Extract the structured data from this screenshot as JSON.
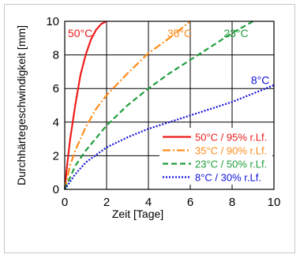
{
  "chart_data": {
    "type": "line",
    "xlabel": "Zeit [Tage]",
    "ylabel": "Durchhärtegeschwindigkeit [mm]",
    "xlim": [
      0,
      10
    ],
    "ylim": [
      0,
      10
    ],
    "xticks": [
      0,
      2,
      4,
      6,
      8,
      10
    ],
    "yticks": [
      0,
      2,
      4,
      6,
      8,
      10
    ],
    "grid": true,
    "legend_position": "bottom-right",
    "series": [
      {
        "name": "50°C / 95% r.Lf.",
        "label": "50°C",
        "color": "#ee1c1c",
        "dash": "solid",
        "x": [
          0,
          0.1,
          0.25,
          0.5,
          0.75,
          1.0,
          1.25,
          1.5,
          1.75,
          2.0
        ],
        "y": [
          0,
          1.3,
          2.9,
          5.0,
          6.8,
          8.0,
          8.9,
          9.5,
          9.85,
          10.0
        ]
      },
      {
        "name": "35°C / 90% r.Lf.",
        "label": "35°C",
        "color": "#ff8c1a",
        "dash": "dashdot",
        "x": [
          0,
          0.25,
          0.5,
          1.0,
          1.5,
          2.0,
          3.0,
          4.0,
          5.0,
          5.5,
          6.0
        ],
        "y": [
          0,
          1.4,
          2.3,
          3.7,
          4.8,
          5.6,
          6.9,
          8.1,
          9.0,
          9.5,
          10.0
        ]
      },
      {
        "name": "23°C / 50% r.Lf.",
        "label": "23°C",
        "color": "#1f9e3a",
        "dash": "dashed",
        "x": [
          0,
          0.5,
          1.0,
          2.0,
          3.0,
          4.0,
          5.0,
          6.0,
          7.0,
          8.0,
          9.0
        ],
        "y": [
          0,
          1.4,
          2.3,
          3.8,
          5.0,
          6.0,
          6.9,
          7.7,
          8.5,
          9.3,
          10.0
        ]
      },
      {
        "name": "8°C / 30% r.Lf.",
        "label": "8°C",
        "color": "#1010dd",
        "dash": "dotted",
        "x": [
          0,
          0.5,
          1.0,
          2.0,
          3.0,
          4.0,
          5.0,
          6.0,
          7.0,
          8.0,
          9.0,
          10.0
        ],
        "y": [
          0,
          0.9,
          1.6,
          2.5,
          3.1,
          3.6,
          4.0,
          4.4,
          4.8,
          5.2,
          5.7,
          6.2
        ]
      }
    ],
    "curve_label_positions": [
      {
        "series": 0,
        "x": 0.15,
        "y": 9.3
      },
      {
        "series": 1,
        "x": 4.9,
        "y": 9.3
      },
      {
        "series": 2,
        "x": 7.6,
        "y": 9.3
      },
      {
        "series": 3,
        "x": 8.9,
        "y": 6.5
      }
    ]
  }
}
